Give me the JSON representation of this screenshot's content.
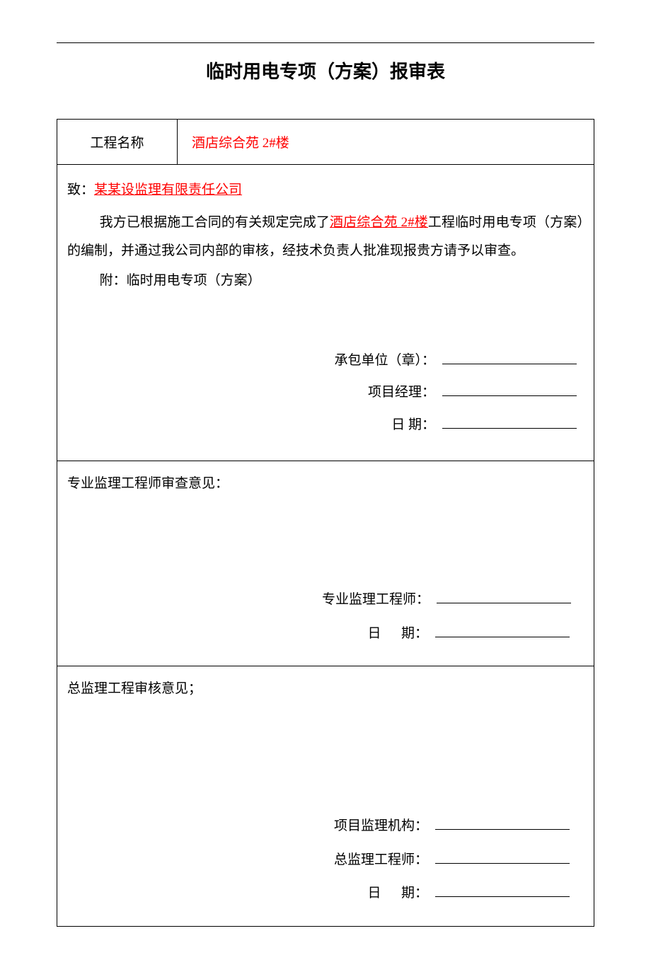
{
  "document": {
    "title": "临时用电专项（方案）报审表",
    "colors": {
      "text": "#000000",
      "highlight": "#ff0000",
      "background": "#ffffff",
      "border": "#000000"
    },
    "header": {
      "project_label": "工程名称",
      "project_name": "酒店综合苑 2#楼"
    },
    "body": {
      "addressee_prefix": "致：",
      "addressee_company": "某某设监理有限责任公司",
      "para_part1": "我方已根据施工合同的有关规定完成了",
      "para_highlight": "酒店综合苑 2#楼",
      "para_part2": "工程临时用电专项（方案）的编制，并通过我公司内部的审核，经技术负责人批准现报贵方请予以审查。",
      "attachment": "附：临时用电专项（方案）",
      "sign": {
        "contractor_label": "承包单位（章）：",
        "manager_label": "项目经理：",
        "date_label": "日 期："
      }
    },
    "section1": {
      "heading": "专业监理工程师审查意见：",
      "sign": {
        "engineer_label": "专业监理工程师：",
        "date_label_prefix": "日",
        "date_label_suffix": "期："
      }
    },
    "section2": {
      "heading": "总监理工程审核意见；",
      "sign": {
        "org_label": "项目监理机构：",
        "chief_label": "总监理工程师：",
        "date_label_prefix": "日",
        "date_label_suffix": "期："
      }
    }
  }
}
